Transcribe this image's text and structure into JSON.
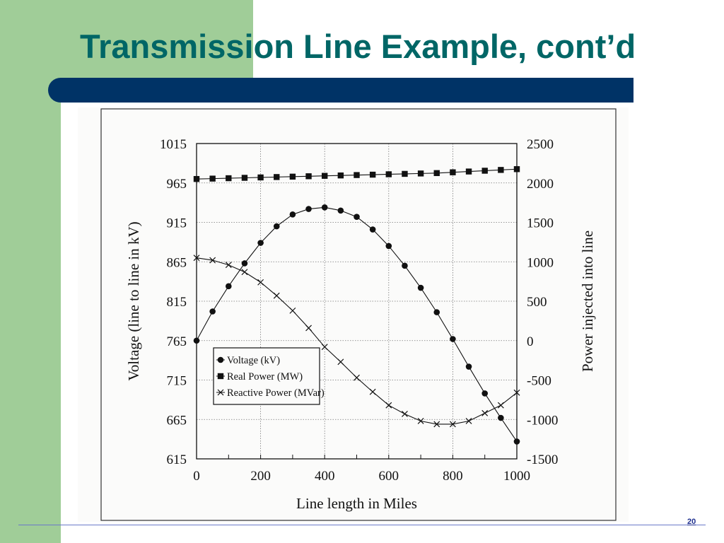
{
  "slide": {
    "title": "Transmission Line Example, cont’d",
    "page_number": "20",
    "colors": {
      "side_strip": "#a0cd98",
      "title_text": "#006666",
      "title_bar": "#003366",
      "footer_line": "#6b79c8"
    }
  },
  "chart_data": {
    "type": "line",
    "title": "",
    "xlabel": "Line length in Miles",
    "ylabel": "Voltage (line to line in kV)",
    "y2label": "Power injected into line",
    "xlim": [
      0,
      1000
    ],
    "ylim": [
      615,
      1015
    ],
    "y2lim": [
      -1500,
      2500
    ],
    "x_ticks": [
      "0",
      "200",
      "400",
      "600",
      "800",
      "1000"
    ],
    "y_ticks": [
      "1015",
      "965",
      "915",
      "865",
      "815",
      "765",
      "715",
      "665",
      "615"
    ],
    "y2_ticks": [
      "2500",
      "2000",
      "1500",
      "1000",
      "500",
      "0",
      "-500",
      "-1000",
      "-1500"
    ],
    "grid": true,
    "legend_position": "lower-left",
    "series": [
      {
        "name": "Voltage (kV)",
        "axis": "left",
        "marker": "circle",
        "x": [
          0,
          50,
          100,
          150,
          200,
          250,
          300,
          350,
          400,
          450,
          500,
          550,
          600,
          650,
          700,
          750,
          800,
          850,
          900,
          950,
          1000
        ],
        "values": [
          765,
          802,
          834,
          863,
          889,
          910,
          925,
          932,
          934,
          930,
          922,
          906,
          885,
          860,
          832,
          801,
          767,
          732,
          698,
          667,
          637
        ]
      },
      {
        "name": "Real Power (MW)",
        "axis": "right",
        "marker": "square",
        "x": [
          0,
          50,
          100,
          150,
          200,
          250,
          300,
          350,
          400,
          450,
          500,
          550,
          600,
          650,
          700,
          750,
          800,
          850,
          900,
          950,
          1000
        ],
        "values": [
          2050,
          2055,
          2060,
          2065,
          2070,
          2075,
          2080,
          2085,
          2090,
          2095,
          2100,
          2105,
          2110,
          2115,
          2120,
          2125,
          2135,
          2145,
          2155,
          2165,
          2175
        ]
      },
      {
        "name": "Reactive Power (MVar)",
        "axis": "right",
        "marker": "x",
        "x": [
          0,
          50,
          100,
          150,
          200,
          250,
          300,
          350,
          400,
          450,
          500,
          550,
          600,
          650,
          700,
          750,
          800,
          850,
          900,
          950,
          1000
        ],
        "values": [
          1050,
          1020,
          960,
          870,
          740,
          570,
          380,
          160,
          -80,
          -270,
          -470,
          -650,
          -820,
          -930,
          -1020,
          -1060,
          -1060,
          -1020,
          -920,
          -820,
          -660
        ]
      }
    ]
  }
}
